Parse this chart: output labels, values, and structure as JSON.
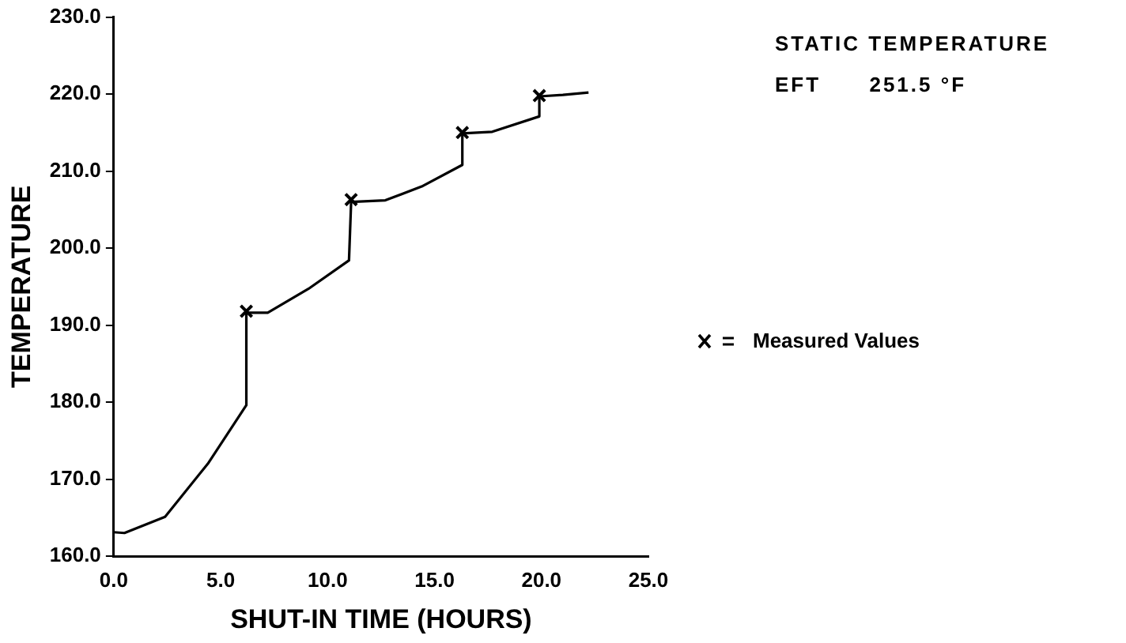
{
  "chart_data": {
    "type": "line",
    "xlabel": "SHUT-IN TIME (HOURS)",
    "ylabel": "TEMPERATURE",
    "annotations": [
      "STATIC TEMPERATURE",
      "EFT      251.5 °F"
    ],
    "series": [
      {
        "type": "line",
        "color": "#000000",
        "x": [
          0,
          0.5,
          2.4,
          4.4,
          6.2,
          6.2,
          7.2,
          9.1,
          11.0,
          11.1,
          12.7,
          14.4,
          16.3,
          16.3,
          17.7,
          19.9,
          19.9,
          21.0,
          22.2
        ],
        "values": [
          163.1,
          163.0,
          165.1,
          172.0,
          179.6,
          191.6,
          191.6,
          194.7,
          198.4,
          206.0,
          206.2,
          208.0,
          210.8,
          214.9,
          215.1,
          217.1,
          219.7,
          219.9,
          220.2
        ]
      },
      {
        "type": "scatter",
        "name": "Measured Values",
        "color": "#000000",
        "marker": "cross",
        "x": [
          6.2,
          11.1,
          16.3,
          19.9
        ],
        "values": [
          191.8,
          206.3,
          215.0,
          219.8
        ]
      }
    ],
    "xlim": [
      0,
      25
    ],
    "xticks": [
      {
        "value": 0,
        "label": "0.0"
      },
      {
        "value": 5,
        "label": "5.0"
      },
      {
        "value": 10,
        "label": "10.0"
      },
      {
        "value": 15,
        "label": "15.0"
      },
      {
        "value": 20,
        "label": "20.0"
      },
      {
        "value": 25,
        "label": "25.0"
      }
    ],
    "ylim": [
      160,
      230
    ],
    "yticks": [
      {
        "value": 160,
        "label": "160.0"
      },
      {
        "value": 170,
        "label": "170.0"
      },
      {
        "value": 180,
        "label": "180.0"
      },
      {
        "value": 190,
        "label": "190.0"
      },
      {
        "value": 200,
        "label": "200.0"
      },
      {
        "value": 210,
        "label": "210.0"
      },
      {
        "value": 220,
        "label": "220.0"
      },
      {
        "value": 230,
        "label": "230.0"
      }
    ],
    "grid": false,
    "legend": "right",
    "marker": "none"
  }
}
